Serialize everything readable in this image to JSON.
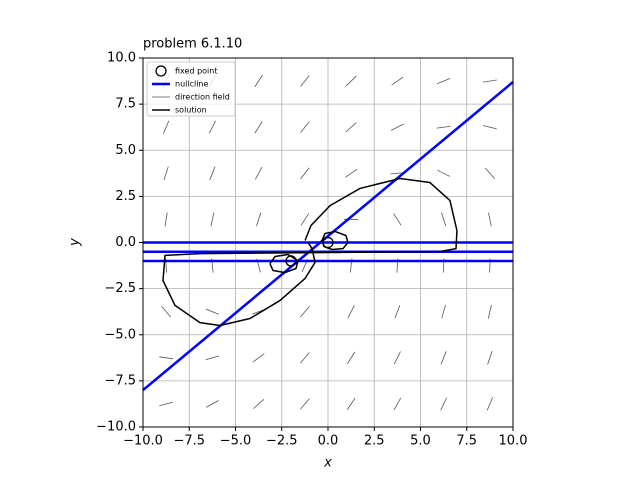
{
  "chart_data": {
    "type": "phase",
    "title": "problem 6.1.10",
    "xlabel": "x",
    "ylabel": "y",
    "xlim": [
      -10,
      10
    ],
    "ylim": [
      -10,
      10
    ],
    "xticks": [
      {
        "value": -10,
        "label": "−10.0"
      },
      {
        "value": -7.5,
        "label": "−7.5"
      },
      {
        "value": -5,
        "label": "−5.0"
      },
      {
        "value": -2.5,
        "label": "−2.5"
      },
      {
        "value": 0,
        "label": "0.0"
      },
      {
        "value": 2.5,
        "label": "2.5"
      },
      {
        "value": 5,
        "label": "5.0"
      },
      {
        "value": 7.5,
        "label": "7.5"
      },
      {
        "value": 10,
        "label": "10.0"
      }
    ],
    "yticks": [
      {
        "value": -10,
        "label": "−10.0"
      },
      {
        "value": -7.5,
        "label": "−7.5"
      },
      {
        "value": -5,
        "label": "−5.0"
      },
      {
        "value": -2.5,
        "label": "−2.5"
      },
      {
        "value": 0,
        "label": "0.0"
      },
      {
        "value": 2.5,
        "label": "2.5"
      },
      {
        "value": 5,
        "label": "5.0"
      },
      {
        "value": 7.5,
        "label": "7.5"
      },
      {
        "value": 10,
        "label": "10.0"
      }
    ],
    "grid": true,
    "legend": "upper left",
    "fixed_points": {
      "name": "fixed point",
      "color": "#000000",
      "x": [
        0,
        -2
      ],
      "y": [
        0,
        -1
      ]
    },
    "nullclines": {
      "name": "nullcline",
      "color": "#0000ff",
      "lines": [
        {
          "x": [
            -10,
            10
          ],
          "y": [
            0,
            0
          ]
        },
        {
          "x": [
            -10,
            10
          ],
          "y": [
            -0.5,
            -0.5
          ]
        },
        {
          "x": [
            -10,
            10
          ],
          "y": [
            -1,
            -1
          ]
        },
        {
          "x": [
            -10,
            10
          ],
          "y": [
            -8,
            8.7
          ]
        }
      ]
    },
    "direction_field": {
      "name": "direction field",
      "color": "#555555",
      "x": [
        -8.75,
        -6.25,
        -3.75,
        -1.25,
        1.25,
        3.75,
        6.25,
        8.75
      ],
      "y": [
        8.75,
        6.25,
        3.75,
        1.25,
        -1.25,
        -3.75,
        -6.25,
        -8.75
      ],
      "angles": [
        [
          64,
          60.6,
          56.4,
          51,
          43.9,
          34.6,
          22.8,
          8.5
        ],
        [
          67.1,
          63.4,
          58.3,
          51.3,
          41.2,
          26.7,
          7.5,
          -13.6
        ],
        [
          72,
          68,
          62,
          52.2,
          34.6,
          5.4,
          -26.6,
          -47.7
        ],
        [
          80.8,
          77.8,
          72,
          56.9,
          -1.2,
          -57.6,
          -72.3,
          -78
        ],
        [
          -86.4,
          -84.2,
          -75.3,
          65.6,
          83,
          86,
          87.2,
          87.8
        ],
        [
          -50,
          -22.1,
          20.9,
          49.5,
          63,
          70,
          74.2,
          77
        ],
        [
          -8.2,
          16.5,
          36.2,
          49.5,
          58.2,
          64,
          68.1,
          71.1
        ],
        [
          14.8,
          29.6,
          41.1,
          49.6,
          56,
          60.8,
          64.4,
          67.3
        ]
      ]
    },
    "solutions": {
      "name": "solution",
      "color": "#000000",
      "curves": [
        {
          "x": [
            -1.24,
            -0.92,
            0.11,
            1.73,
            3.89,
            5.51,
            6.59,
            6.97,
            6.92,
            6.05,
            0.11,
            -6.92,
            -8.81,
            -8.92,
            -8.27,
            -6.92,
            -5.84,
            -4.22,
            -2.59,
            -1.24,
            -0.7,
            -0.86,
            -1.08
          ],
          "y": [
            0.11,
            0.92,
            2.0,
            2.93,
            3.47,
            3.25,
            2.28,
            0.65,
            -0.33,
            -0.49,
            -0.54,
            -0.6,
            -0.7,
            -2.06,
            -3.41,
            -4.34,
            -4.5,
            -4.12,
            -3.14,
            -1.95,
            -1.08,
            -0.33,
            0
          ]
        },
        {
          "x": [
            -0.32,
            -0.16,
            0.38,
            0.97,
            1.08,
            0.81,
            0.22,
            -0.22,
            -0.32
          ],
          "y": [
            0.11,
            0.49,
            0.6,
            0.38,
            0,
            -0.33,
            -0.38,
            -0.22,
            0.11
          ]
        },
        {
          "x": [
            -3.14,
            -2.86,
            -2.16,
            -1.62,
            -1.73,
            -2.32,
            -2.97,
            -3.14
          ],
          "y": [
            -1.14,
            -0.76,
            -0.65,
            -0.98,
            -1.41,
            -1.63,
            -1.52,
            -1.14
          ]
        }
      ]
    }
  }
}
